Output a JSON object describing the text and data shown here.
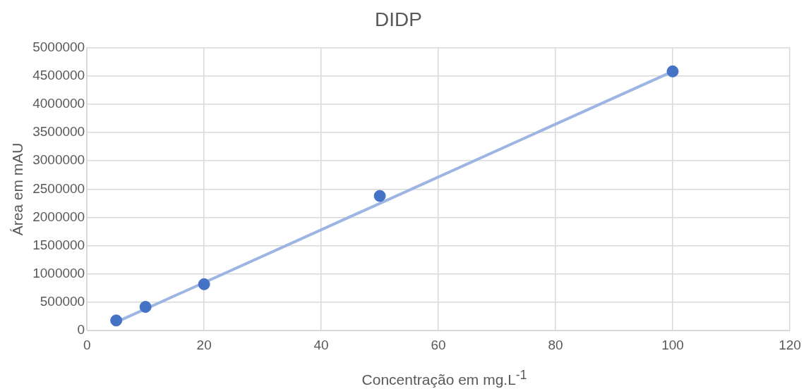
{
  "chart_data": {
    "type": "scatter",
    "title": "DIDP",
    "xlabel": "Concentração em mg.L$^{-1}$",
    "ylabel": "Área em mAU",
    "x": [
      5,
      10,
      20,
      50,
      100
    ],
    "series": [
      {
        "type": "scatter",
        "color": "#4472c4",
        "values": [
          180000,
          420000,
          820000,
          2380000,
          4580000
        ],
        "marker": "circle"
      },
      {
        "type": "line",
        "color": "#9db5e2",
        "x": [
          5,
          100
        ],
        "values": [
          150000,
          4580000
        ],
        "marker": "none",
        "line_style": "solid"
      }
    ],
    "xlim": [
      0,
      120
    ],
    "xticks": [
      0,
      20,
      40,
      60,
      80,
      100,
      120
    ],
    "ylim": [
      0,
      5000000
    ],
    "yticks": [
      0,
      500000,
      1000000,
      1500000,
      2000000,
      2500000,
      3000000,
      3500000,
      4000000,
      4500000,
      5000000
    ],
    "grid": true,
    "legend": false
  }
}
